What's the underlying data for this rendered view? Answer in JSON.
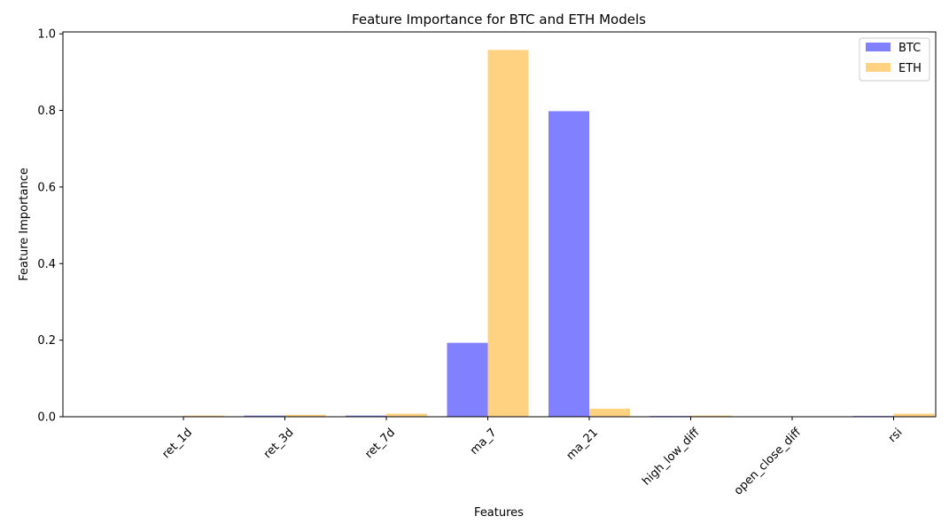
{
  "chart_data": {
    "type": "bar",
    "title": "Feature Importance for BTC and ETH Models",
    "xlabel": "Features",
    "ylabel": "Feature Importance",
    "categories": [
      "ret_1d",
      "ret_3d",
      "ret_7d",
      "ma_7",
      "ma_21",
      "high_low_diff",
      "open_close_diff",
      "rsi"
    ],
    "series": [
      {
        "name": "BTC",
        "color": "#4b4bff",
        "values": [
          0.001,
          0.003,
          0.003,
          0.193,
          0.798,
          0.002,
          0.0005,
          0.002
        ]
      },
      {
        "name": "ETH",
        "color": "#ffbf4d",
        "values": [
          0.003,
          0.005,
          0.008,
          0.958,
          0.021,
          0.003,
          0.001,
          0.008
        ]
      }
    ],
    "ylim": [
      0,
      1.005
    ],
    "yticks": [
      0.0,
      0.2,
      0.4,
      0.6,
      0.8,
      1.0
    ],
    "ytick_labels": [
      "0.0",
      "0.2",
      "0.4",
      "0.6",
      "0.8",
      "1.0"
    ],
    "xtick_rotation_deg": 45,
    "grid": false,
    "legend_position": "top-right"
  }
}
